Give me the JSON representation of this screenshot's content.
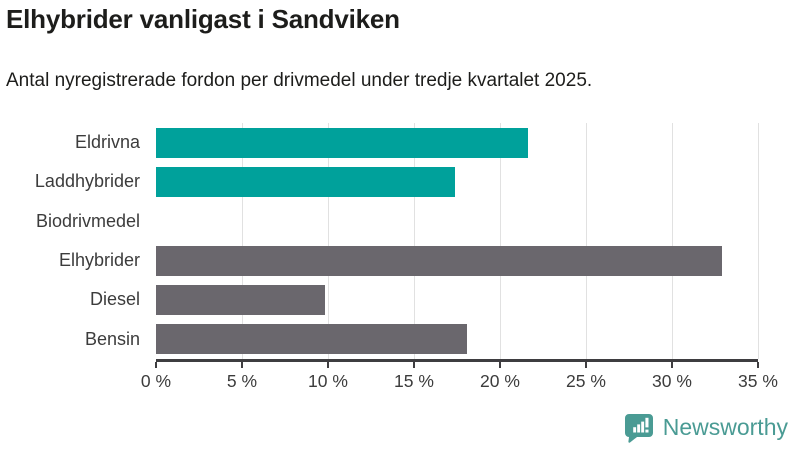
{
  "chart_data": {
    "type": "bar",
    "orientation": "horizontal",
    "title": "Elhybrider vanligast i Sandviken",
    "subtitle": "Antal nyregistrerade fordon per drivmedel under tredje kvartalet 2025.",
    "categories": [
      "Eldrivna",
      "Laddhybrider",
      "Biodrivmedel",
      "Elhybrider",
      "Diesel",
      "Bensin"
    ],
    "values": [
      21.6,
      17.4,
      0,
      32.9,
      9.8,
      18.1
    ],
    "bar_colors": [
      "#00a19b",
      "#00a19b",
      "#00a19b",
      "#6a676d",
      "#6a676d",
      "#6a676d"
    ],
    "xlabel": "",
    "ylabel": "",
    "xlim": [
      0,
      35
    ],
    "xticks": [
      0,
      5,
      10,
      15,
      20,
      25,
      30,
      35
    ],
    "tick_suffix": " %",
    "grid": true,
    "legend": "none",
    "accent_teal": "#00a19b",
    "neutral_gray": "#6a676d",
    "gridline_color": "#e1e1e1",
    "axis_color": "#3e3d40"
  },
  "footer": {
    "brand": "Newsworthy",
    "brand_color": "#4a9b94",
    "logo_icon": "newsworthy-bubble-chart-icon"
  }
}
